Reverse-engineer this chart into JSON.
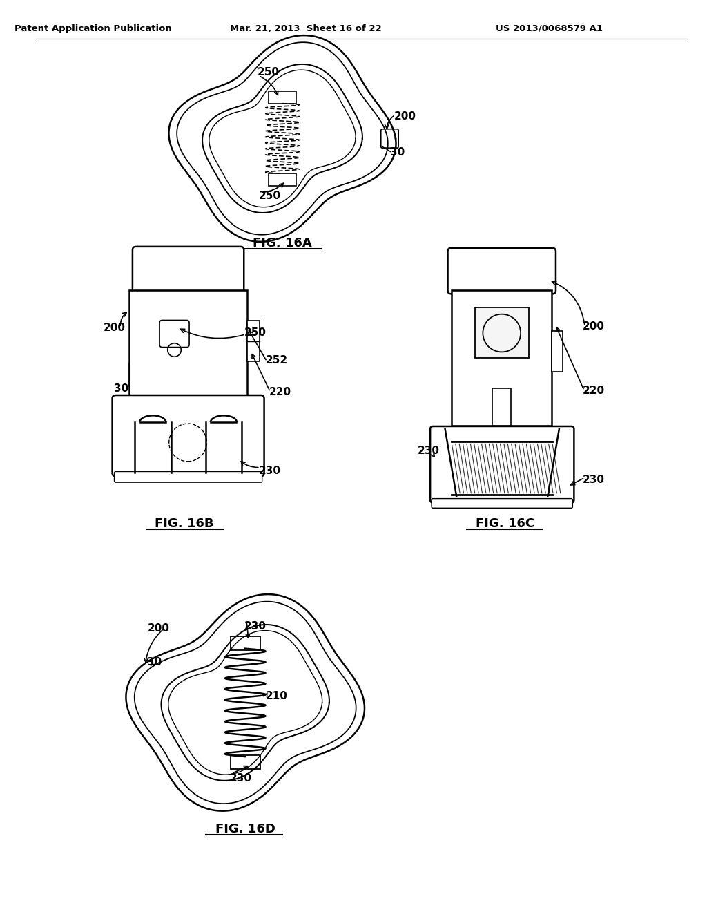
{
  "bg_color": "#ffffff",
  "header_left": "Patent Application Publication",
  "header_mid": "Mar. 21, 2013  Sheet 16 of 22",
  "header_right": "US 2013/0068579 A1",
  "line_color": "#000000",
  "line_width": 1.8
}
